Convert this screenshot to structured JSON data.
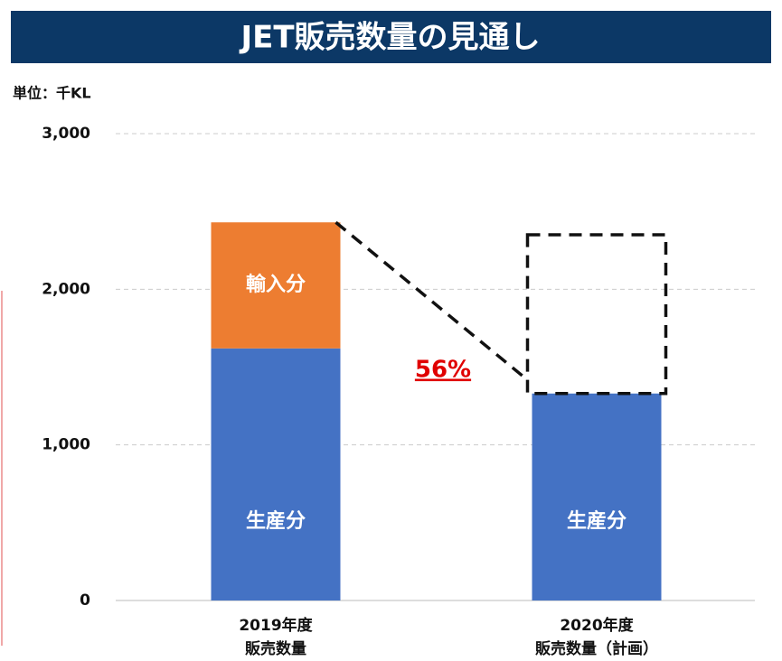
{
  "chart_data": {
    "type": "stacked_bar",
    "title": "JET販売数量の見通し",
    "unit_label": "単位：千KL",
    "categories": [
      "2019年度\n販売数量",
      "2020年度\n販売数量（計画）"
    ],
    "series": [
      {
        "name": "生産分",
        "color": "#4472c4",
        "values": [
          1620,
          1330
        ]
      },
      {
        "name": "輸入分",
        "color": "#ed7d31",
        "values": [
          810,
          null
        ]
      }
    ],
    "annotation": "56%",
    "ylim": [
      0,
      3000
    ],
    "yticks": [
      0,
      {
        "value": 1000,
        "label": "1,000"
      },
      {
        "value": 2000,
        "label": "2,000"
      },
      {
        "value": 3000,
        "label": "3,000"
      }
    ],
    "grid": true
  }
}
